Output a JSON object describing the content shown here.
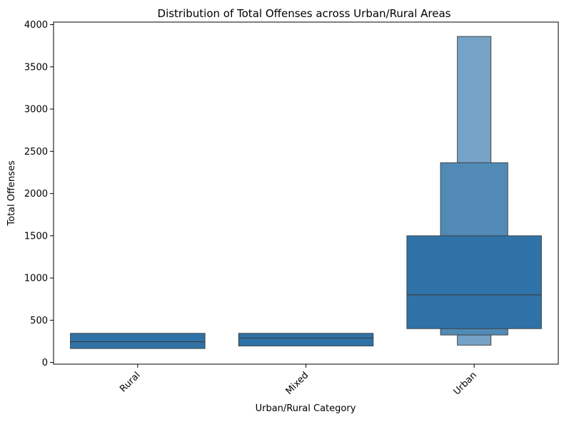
{
  "chart_data": {
    "type": "boxen",
    "title": "Distribution of Total Offenses across Urban/Rural Areas",
    "xlabel": "Urban/Rural Category",
    "ylabel": "Total Offenses",
    "ylim": [
      -20,
      4030
    ],
    "yticks": [
      0,
      500,
      1000,
      1500,
      2000,
      2500,
      3000,
      3500,
      4000
    ],
    "categories": [
      "Rural",
      "Mixed",
      "Urban"
    ],
    "colors": {
      "box": "#2f72a7",
      "edge": "#3b3b3b"
    },
    "boxes": [
      {
        "category": "Rural",
        "median": 245,
        "levels": [
          {
            "low": 165,
            "high": 345,
            "width": 0.8
          }
        ]
      },
      {
        "category": "Mixed",
        "median": 290,
        "levels": [
          {
            "low": 195,
            "high": 345,
            "width": 0.8
          }
        ]
      },
      {
        "category": "Urban",
        "median": 800,
        "levels": [
          {
            "low": 400,
            "high": 1500,
            "width": 0.8
          },
          {
            "low": 325,
            "high": 2365,
            "width": 0.4
          },
          {
            "low": 205,
            "high": 3860,
            "width": 0.2
          }
        ]
      }
    ]
  }
}
